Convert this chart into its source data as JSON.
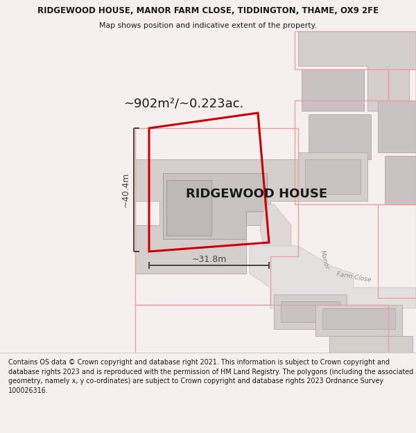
{
  "title_line1": "RIDGEWOOD HOUSE, MANOR FARM CLOSE, TIDDINGTON, THAME, OX9 2FE",
  "title_line2": "Map shows position and indicative extent of the property.",
  "house_label": "RIDGEWOOD HOUSE",
  "area_label": "~902m²/~0.223ac.",
  "width_label": "~31.8m",
  "height_label": "~40.4m",
  "footer": "Contains OS data © Crown copyright and database right 2021. This information is subject to Crown copyright and database rights 2023 and is reproduced with the permission of HM Land Registry. The polygons (including the associated geometry, namely x, y co-ordinates) are subject to Crown copyright and database rights 2023 Ordnance Survey 100026316.",
  "bg_color": "#f5f0ef",
  "map_bg": "#ffffff",
  "red_color": "#cc0000",
  "pink_color": "#e8a0a0",
  "gray_fill": "#d4cecd",
  "gray_fill2": "#c8c2c2",
  "text_dark": "#1a1a1a",
  "dim_color": "#444444",
  "road_text": "#909090",
  "footer_sep": "#cccccc",
  "title1_size": 8.5,
  "title2_size": 7.8,
  "area_label_size": 13,
  "house_label_size": 13,
  "dim_label_size": 9,
  "footer_size": 6.9
}
